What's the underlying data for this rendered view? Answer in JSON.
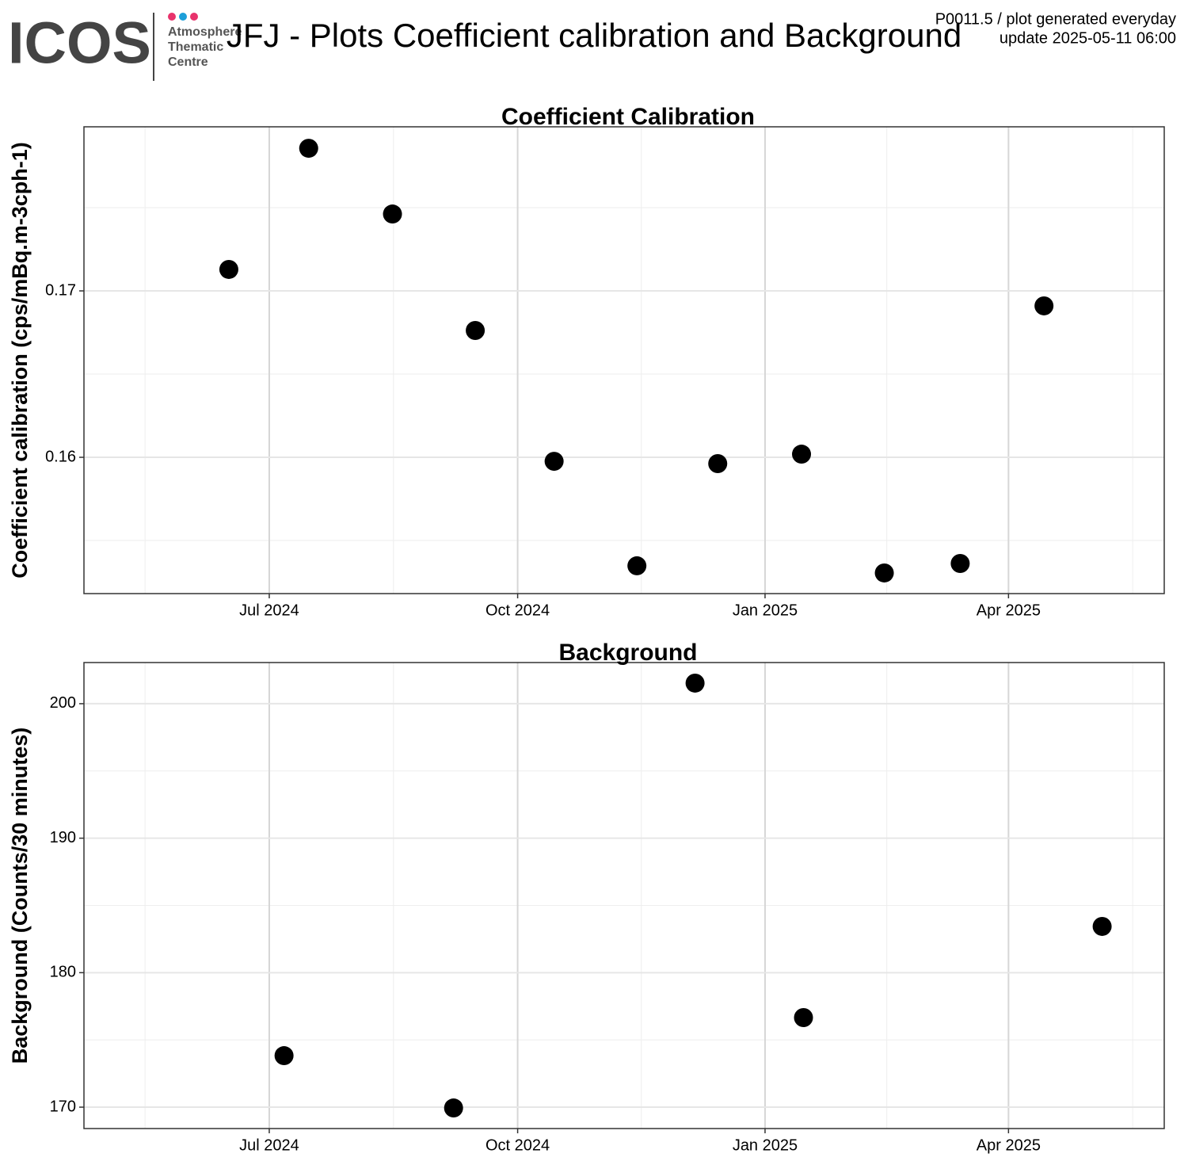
{
  "header": {
    "logo": "ICOS",
    "logo_lines": [
      "Atmosphere",
      "Thematic",
      "Centre"
    ],
    "title": "JFJ - Plots Coefficient calibration and Background",
    "note_lines": [
      "P0011.5 / plot generated everyday",
      "update  2025-05-11 06:00"
    ]
  },
  "chart_data": [
    {
      "type": "scatter",
      "title": "Coefficient Calibration",
      "y_label": "Coefficient calibration (cps/mBq.m-3cph-1)",
      "color": "#000000",
      "grid": true,
      "x": [
        2024.456,
        2024.537,
        2024.622,
        2024.706,
        2024.786,
        2024.87,
        2024.952,
        2025.037,
        2025.121,
        2025.198,
        2025.283
      ],
      "values": [
        0.17129,
        0.17857,
        0.17462,
        0.16762,
        0.15976,
        0.15348,
        0.15962,
        0.16019,
        0.15305,
        0.15362,
        0.1691
      ],
      "xlim": [
        2024.309,
        2025.405
      ],
      "ylim": [
        0.15181,
        0.17986
      ],
      "xticks": [
        {
          "value": 2024.497,
          "label": "Jul 2024"
        },
        {
          "value": 2024.749,
          "label": "Oct 2024"
        },
        {
          "value": 2025.0,
          "label": "Jan 2025"
        },
        {
          "value": 2025.247,
          "label": "Apr 2025"
        }
      ],
      "yticks": [
        0.16,
        0.17
      ]
    },
    {
      "type": "scatter",
      "title": "Background",
      "y_label": "Background (Counts/30 minutes)",
      "color": "#000000",
      "grid": true,
      "x": [
        2024.512,
        2024.684,
        2024.929,
        2025.039,
        2025.342
      ],
      "values": [
        173.83,
        169.94,
        201.53,
        176.66,
        183.44
      ],
      "xlim": [
        2024.309,
        2025.405
      ],
      "ylim": [
        168.41,
        203.06
      ],
      "xticks": [
        {
          "value": 2024.497,
          "label": "Jul 2024"
        },
        {
          "value": 2024.749,
          "label": "Oct 2024"
        },
        {
          "value": 2025.0,
          "label": "Jan 2025"
        },
        {
          "value": 2025.247,
          "label": "Apr 2025"
        }
      ],
      "yticks": [
        170,
        180,
        190,
        200
      ]
    }
  ]
}
